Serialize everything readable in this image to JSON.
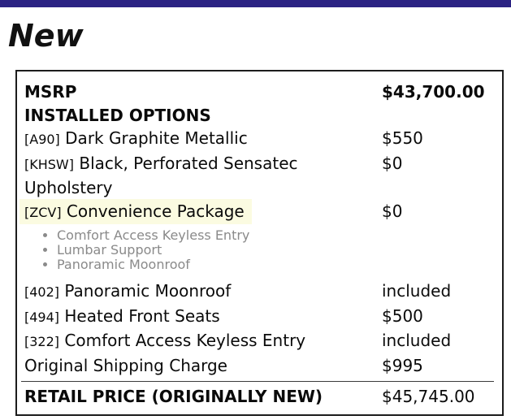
{
  "title": "New",
  "colors": {
    "accent_bar": "#2b2383",
    "row_highlight": "#fbfbe1",
    "bullet_text": "#8a8a8a"
  },
  "pricing": {
    "msrp_label": "MSRP",
    "msrp_value": "$43,700.00",
    "installed_options_label": "INSTALLED OPTIONS",
    "options": [
      {
        "code": "[A90]",
        "name": "Dark Graphite Metallic",
        "price": "$550"
      },
      {
        "code": "[KHSW]",
        "name": "Black, Perforated Sensatec Upholstery",
        "price": "$0"
      },
      {
        "code": "[ZCV]",
        "name": "Convenience Package",
        "price": "$0",
        "highlighted": true,
        "bullets": [
          "Comfort Access Keyless Entry",
          "Lumbar Support",
          "Panoramic Moonroof"
        ]
      },
      {
        "code": "[402]",
        "name": "Panoramic Moonroof",
        "price": "included"
      },
      {
        "code": "[494]",
        "name": "Heated Front Seats",
        "price": "$500"
      },
      {
        "code": "[322]",
        "name": "Comfort Access Keyless Entry",
        "price": "included"
      },
      {
        "code": "",
        "name": "Original Shipping Charge",
        "price": "$995"
      }
    ],
    "retail_label": "RETAIL PRICE (ORIGINALLY NEW)",
    "retail_value": "$45,745.00"
  }
}
